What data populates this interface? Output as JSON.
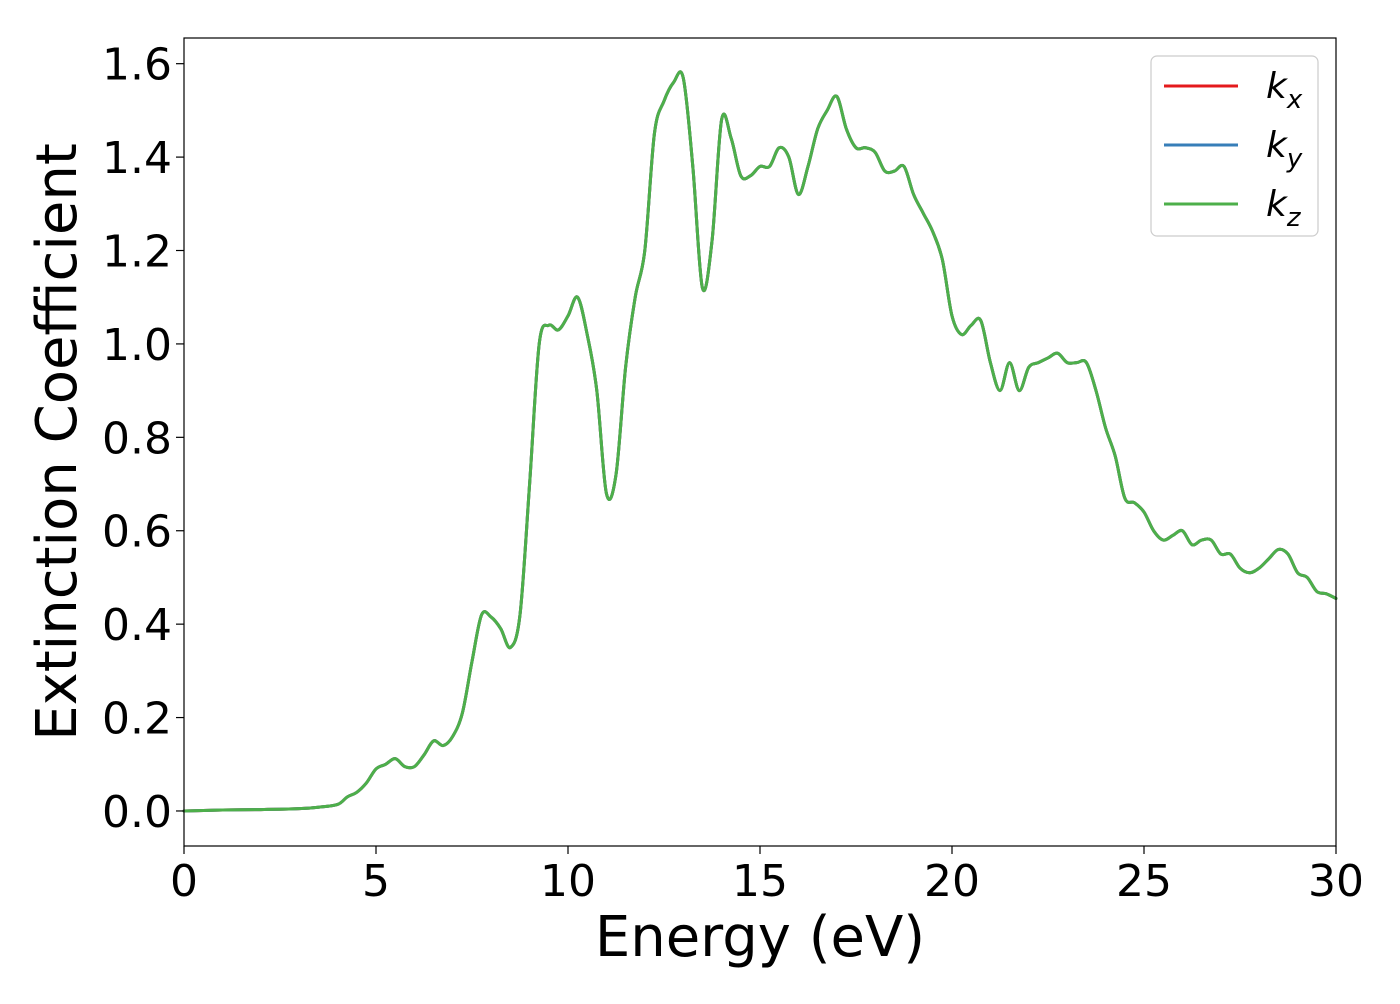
{
  "chart_data": {
    "type": "line",
    "title": "",
    "xlabel": "Energy (eV)",
    "ylabel": "Extinction Coefficient",
    "xlim": [
      0,
      30
    ],
    "ylim": [
      -0.075,
      1.655
    ],
    "xticks": [
      0,
      5,
      10,
      15,
      20,
      25,
      30
    ],
    "xtick_labels": [
      "0",
      "5",
      "10",
      "15",
      "20",
      "25",
      "30"
    ],
    "yticks": [
      0.0,
      0.2,
      0.4,
      0.6,
      0.8,
      1.0,
      1.2,
      1.4,
      1.6
    ],
    "ytick_labels": [
      "0.0",
      "0.2",
      "0.4",
      "0.6",
      "0.8",
      "1.0",
      "1.2",
      "1.4",
      "1.6"
    ],
    "grid": false,
    "legend_position": "top-right",
    "x": [
      0,
      1,
      2,
      3,
      3.5,
      4,
      4.25,
      4.5,
      4.75,
      5,
      5.25,
      5.5,
      5.75,
      6,
      6.25,
      6.5,
      6.75,
      7,
      7.25,
      7.5,
      7.75,
      8,
      8.25,
      8.5,
      8.75,
      9,
      9.25,
      9.5,
      9.75,
      10,
      10.25,
      10.5,
      10.75,
      11,
      11.25,
      11.5,
      11.75,
      12,
      12.25,
      12.5,
      12.75,
      13,
      13.25,
      13.5,
      13.75,
      14,
      14.25,
      14.5,
      14.75,
      15,
      15.25,
      15.5,
      15.75,
      16,
      16.25,
      16.5,
      16.75,
      17,
      17.25,
      17.5,
      17.75,
      18,
      18.25,
      18.5,
      18.75,
      19,
      19.25,
      19.5,
      19.75,
      20,
      20.25,
      20.5,
      20.75,
      21,
      21.25,
      21.5,
      21.75,
      22,
      22.25,
      22.5,
      22.75,
      23,
      23.25,
      23.5,
      23.75,
      24,
      24.25,
      24.5,
      24.75,
      25,
      25.25,
      25.5,
      25.75,
      26,
      26.25,
      26.5,
      26.75,
      27,
      27.25,
      27.5,
      27.75,
      28,
      28.25,
      28.5,
      28.75,
      29,
      29.25,
      29.5,
      29.75,
      30
    ],
    "series": [
      {
        "name": "k_x",
        "name_base": "k",
        "name_sub": "x",
        "color": "#e41a1c",
        "values": [
          0.0,
          0.002,
          0.003,
          0.005,
          0.008,
          0.014,
          0.03,
          0.04,
          0.06,
          0.09,
          0.1,
          0.112,
          0.095,
          0.095,
          0.12,
          0.15,
          0.14,
          0.16,
          0.21,
          0.32,
          0.42,
          0.415,
          0.39,
          0.35,
          0.42,
          0.7,
          1.0,
          1.04,
          1.03,
          1.06,
          1.1,
          1.02,
          0.9,
          0.68,
          0.72,
          0.95,
          1.1,
          1.2,
          1.45,
          1.52,
          1.56,
          1.57,
          1.38,
          1.12,
          1.22,
          1.48,
          1.44,
          1.36,
          1.36,
          1.38,
          1.38,
          1.42,
          1.4,
          1.32,
          1.38,
          1.46,
          1.5,
          1.53,
          1.46,
          1.42,
          1.42,
          1.41,
          1.37,
          1.37,
          1.38,
          1.32,
          1.28,
          1.24,
          1.18,
          1.06,
          1.02,
          1.04,
          1.05,
          0.96,
          0.9,
          0.96,
          0.9,
          0.95,
          0.96,
          0.97,
          0.98,
          0.96,
          0.96,
          0.96,
          0.9,
          0.82,
          0.76,
          0.67,
          0.66,
          0.64,
          0.6,
          0.58,
          0.59,
          0.6,
          0.57,
          0.58,
          0.58,
          0.55,
          0.55,
          0.52,
          0.51,
          0.52,
          0.54,
          0.56,
          0.55,
          0.51,
          0.5,
          0.47,
          0.465,
          0.455
        ]
      },
      {
        "name": "k_y",
        "name_base": "k",
        "name_sub": "y",
        "color": "#377eb8",
        "values": [
          0.0,
          0.002,
          0.003,
          0.005,
          0.008,
          0.014,
          0.03,
          0.04,
          0.06,
          0.09,
          0.1,
          0.112,
          0.095,
          0.095,
          0.12,
          0.15,
          0.14,
          0.16,
          0.21,
          0.32,
          0.42,
          0.415,
          0.39,
          0.35,
          0.42,
          0.7,
          1.0,
          1.04,
          1.03,
          1.06,
          1.1,
          1.02,
          0.9,
          0.68,
          0.72,
          0.95,
          1.1,
          1.2,
          1.45,
          1.52,
          1.56,
          1.57,
          1.38,
          1.12,
          1.22,
          1.48,
          1.44,
          1.36,
          1.36,
          1.38,
          1.38,
          1.42,
          1.4,
          1.32,
          1.38,
          1.46,
          1.5,
          1.53,
          1.46,
          1.42,
          1.42,
          1.41,
          1.37,
          1.37,
          1.38,
          1.32,
          1.28,
          1.24,
          1.18,
          1.06,
          1.02,
          1.04,
          1.05,
          0.96,
          0.9,
          0.96,
          0.9,
          0.95,
          0.96,
          0.97,
          0.98,
          0.96,
          0.96,
          0.96,
          0.9,
          0.82,
          0.76,
          0.67,
          0.66,
          0.64,
          0.6,
          0.58,
          0.59,
          0.6,
          0.57,
          0.58,
          0.58,
          0.55,
          0.55,
          0.52,
          0.51,
          0.52,
          0.54,
          0.56,
          0.55,
          0.51,
          0.5,
          0.47,
          0.465,
          0.455
        ]
      },
      {
        "name": "k_z",
        "name_base": "k",
        "name_sub": "z",
        "color": "#4daf4a",
        "values": [
          0.0,
          0.002,
          0.003,
          0.005,
          0.008,
          0.014,
          0.03,
          0.04,
          0.06,
          0.09,
          0.1,
          0.112,
          0.095,
          0.095,
          0.12,
          0.15,
          0.14,
          0.16,
          0.21,
          0.32,
          0.42,
          0.415,
          0.39,
          0.35,
          0.42,
          0.7,
          1.0,
          1.04,
          1.03,
          1.06,
          1.1,
          1.02,
          0.9,
          0.68,
          0.72,
          0.95,
          1.1,
          1.2,
          1.45,
          1.52,
          1.56,
          1.57,
          1.38,
          1.12,
          1.22,
          1.48,
          1.44,
          1.36,
          1.36,
          1.38,
          1.38,
          1.42,
          1.4,
          1.32,
          1.38,
          1.46,
          1.5,
          1.53,
          1.46,
          1.42,
          1.42,
          1.41,
          1.37,
          1.37,
          1.38,
          1.32,
          1.28,
          1.24,
          1.18,
          1.06,
          1.02,
          1.04,
          1.05,
          0.96,
          0.9,
          0.96,
          0.9,
          0.95,
          0.96,
          0.97,
          0.98,
          0.96,
          0.96,
          0.96,
          0.9,
          0.82,
          0.76,
          0.67,
          0.66,
          0.64,
          0.6,
          0.58,
          0.59,
          0.6,
          0.57,
          0.58,
          0.58,
          0.55,
          0.55,
          0.52,
          0.51,
          0.52,
          0.54,
          0.56,
          0.55,
          0.51,
          0.5,
          0.47,
          0.465,
          0.455
        ]
      }
    ]
  }
}
